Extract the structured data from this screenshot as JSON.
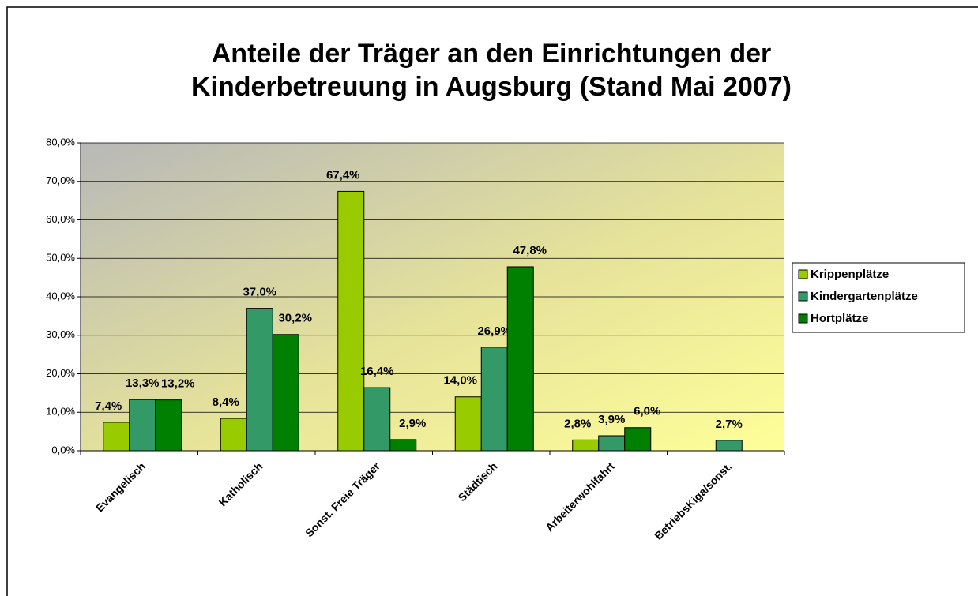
{
  "chart_data": {
    "type": "bar",
    "title": [
      "Anteile der Träger an den Einrichtungen der",
      "Kinderbetreuung in Augsburg (Stand Mai 2007)"
    ],
    "categories": [
      "Evangelisch",
      "Katholisch",
      "Sonst. Freie Träger",
      "Städtisch",
      "Arbeiterwohlfahrt",
      "BetriebsKiga/sonst."
    ],
    "series": [
      {
        "name": "Krippenplätze",
        "color": "#99cc00",
        "values": [
          7.4,
          8.4,
          67.4,
          14.0,
          2.8,
          null
        ],
        "value_labels": [
          "7,4%",
          "8,4%",
          "67,4%",
          "14,0%",
          "2,8%",
          null
        ]
      },
      {
        "name": "Kindergartenplätze",
        "color": "#339966",
        "values": [
          13.3,
          37.0,
          16.4,
          26.9,
          3.9,
          2.7
        ],
        "value_labels": [
          "13,3%",
          "37,0%",
          "16,4%",
          "26,9%",
          "3,9%",
          "2,7%"
        ]
      },
      {
        "name": "Hortplätze",
        "color": "#008000",
        "values": [
          13.2,
          30.2,
          2.9,
          47.8,
          6.0,
          null
        ],
        "value_labels": [
          "13,2%",
          "30,2%",
          "2,9%",
          "47,8%",
          "6,0%",
          null
        ]
      }
    ],
    "ylim": [
      0,
      80
    ],
    "yticks": [
      {
        "value": 0,
        "label": "0,0%"
      },
      {
        "value": 10,
        "label": "10,0%"
      },
      {
        "value": 20,
        "label": "20,0%"
      },
      {
        "value": 30,
        "label": "30,0%"
      },
      {
        "value": 40,
        "label": "40,0%"
      },
      {
        "value": 50,
        "label": "50,0%"
      },
      {
        "value": 60,
        "label": "60,0%"
      },
      {
        "value": 70,
        "label": "70,0%"
      },
      {
        "value": 80,
        "label": "80,0%"
      }
    ],
    "grid": true,
    "legend": "right"
  }
}
